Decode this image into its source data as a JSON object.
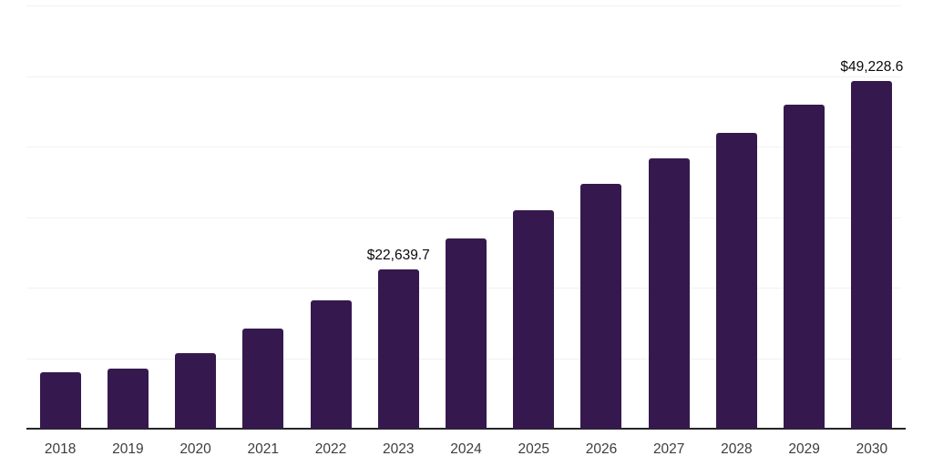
{
  "chart_data": {
    "type": "bar",
    "title": "",
    "xlabel": "",
    "ylabel": "",
    "categories": [
      "2018",
      "2019",
      "2020",
      "2021",
      "2022",
      "2023",
      "2024",
      "2025",
      "2026",
      "2027",
      "2028",
      "2029",
      "2030"
    ],
    "values": [
      8000,
      8500,
      10700,
      14200,
      18200,
      22639.7,
      27000,
      31000,
      34700,
      38300,
      41900,
      45900,
      49228.6
    ],
    "data_labels": [
      null,
      null,
      null,
      null,
      null,
      "$22,639.7",
      null,
      null,
      null,
      null,
      null,
      null,
      "$49,228.6"
    ],
    "ylim": [
      0,
      60000
    ],
    "gridline_interval": 10000,
    "grid": "horizontal",
    "legend": "none",
    "colors": {
      "bar": "#35194e",
      "axis_line": "#262626",
      "gridline": "#f2f2f2",
      "tick_label": "#3d3d3d",
      "data_label": "#0a0a0a",
      "background": "#ffffff"
    }
  }
}
